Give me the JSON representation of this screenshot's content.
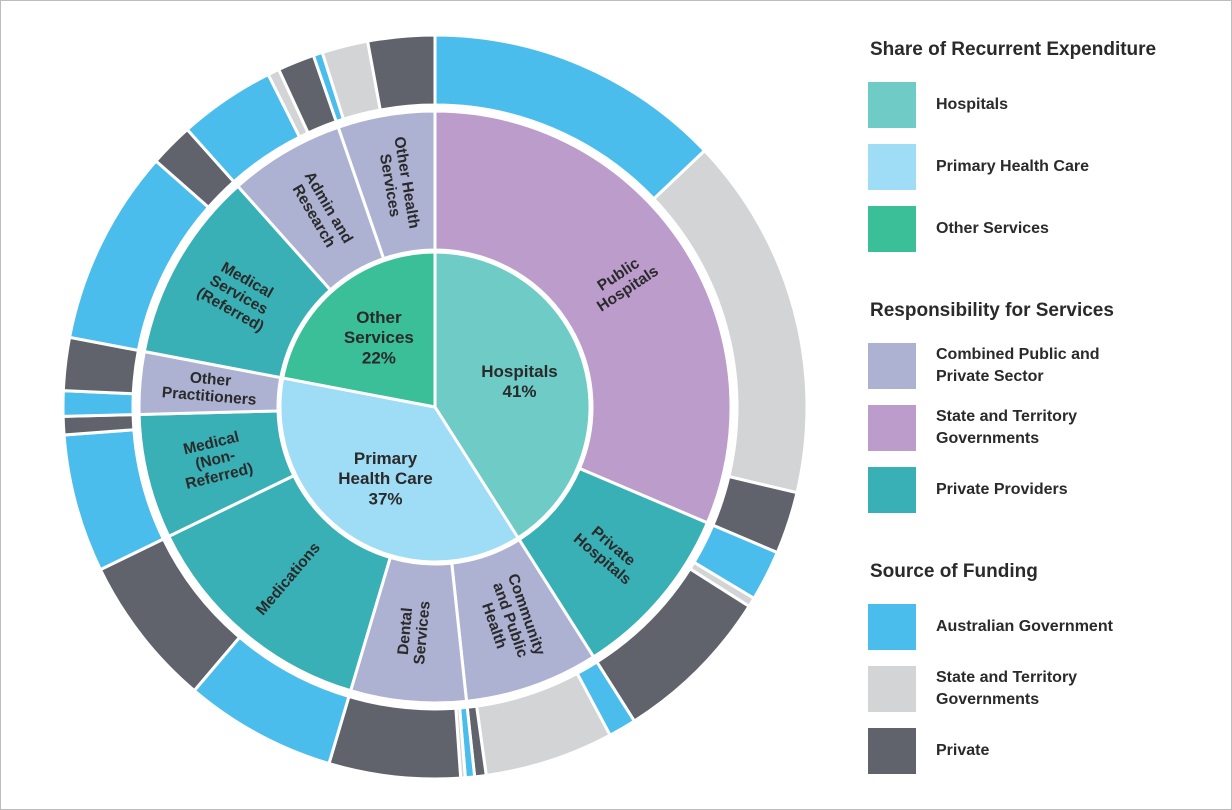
{
  "chart_data": {
    "type": "sunburst",
    "legend": [
      {
        "title": "Share of Recurrent Expenditure",
        "items": [
          {
            "name": "Hospitals",
            "color": "#6ecbc6"
          },
          {
            "name": "Primary Health Care",
            "color": "#9fdcf6"
          },
          {
            "name": "Other Services",
            "color": "#3bbf99"
          }
        ]
      },
      {
        "title": "Responsibility for Services",
        "items": [
          {
            "name": "Combined Public and\nPrivate Sector",
            "color": "#adb1d2"
          },
          {
            "name": "State and Territory\nGovernments",
            "color": "#bb9ccb"
          },
          {
            "name": "Private Providers",
            "color": "#39b0b5"
          }
        ]
      },
      {
        "title": "Source of Funding",
        "items": [
          {
            "name": "Australian Government",
            "color": "#4bbdec"
          },
          {
            "name": "State and Territory\nGovernments",
            "color": "#d3d4d6"
          },
          {
            "name": "Private",
            "color": "#60636b"
          }
        ]
      }
    ],
    "data": [
      {
        "value": 41,
        "value_label": "41%",
        "children": [
          {
            "name": "Public\nHospitals",
            "value": 31.4,
            "responsibility": 1,
            "funding": [
              12.9,
              15.8,
              2.7
            ]
          },
          {
            "name": "Private\nHospitals",
            "value": 9.6,
            "responsibility": 2,
            "funding": [
              2.2,
              0.4,
              7.0
            ]
          }
        ]
      },
      {
        "value": 37,
        "value_label": "37%",
        "children": [
          {
            "name": "Community\nand Public\nHealth",
            "value": 7.3,
            "responsibility": 0,
            "funding": [
              1.2,
              5.6,
              0.5
            ]
          },
          {
            "name": "Dental\nServices",
            "value": 6.3,
            "responsibility": 0,
            "funding": [
              0.4,
              0.2,
              5.7
            ]
          },
          {
            "name": "Medications",
            "value": 13.2,
            "responsibility": 2,
            "funding": [
              6.6,
              0,
              6.6
            ]
          },
          {
            "name": "Medical\n(Non-\nReferred)",
            "value": 6.8,
            "responsibility": 2,
            "funding": [
              6.0,
              0,
              0.8
            ]
          },
          {
            "name": "Other\nPractitioners",
            "value": 3.4,
            "responsibility": 0,
            "funding": [
              1.1,
              0,
              2.3
            ]
          }
        ]
      },
      {
        "value": 22,
        "value_label": "22%",
        "children": [
          {
            "name": "Medical\nServices\n(Referred)",
            "value": 10.4,
            "responsibility": 2,
            "funding": [
              8.5,
              0,
              1.9
            ]
          },
          {
            "name": "Admin and\nResearch",
            "value": 6.3,
            "responsibility": 0,
            "funding": [
              4.2,
              0.5,
              1.6
            ]
          },
          {
            "name": "Other Health\nServices",
            "value": 5.3,
            "responsibility": 0,
            "funding": [
              0.4,
              2.0,
              2.9
            ]
          }
        ]
      }
    ]
  }
}
